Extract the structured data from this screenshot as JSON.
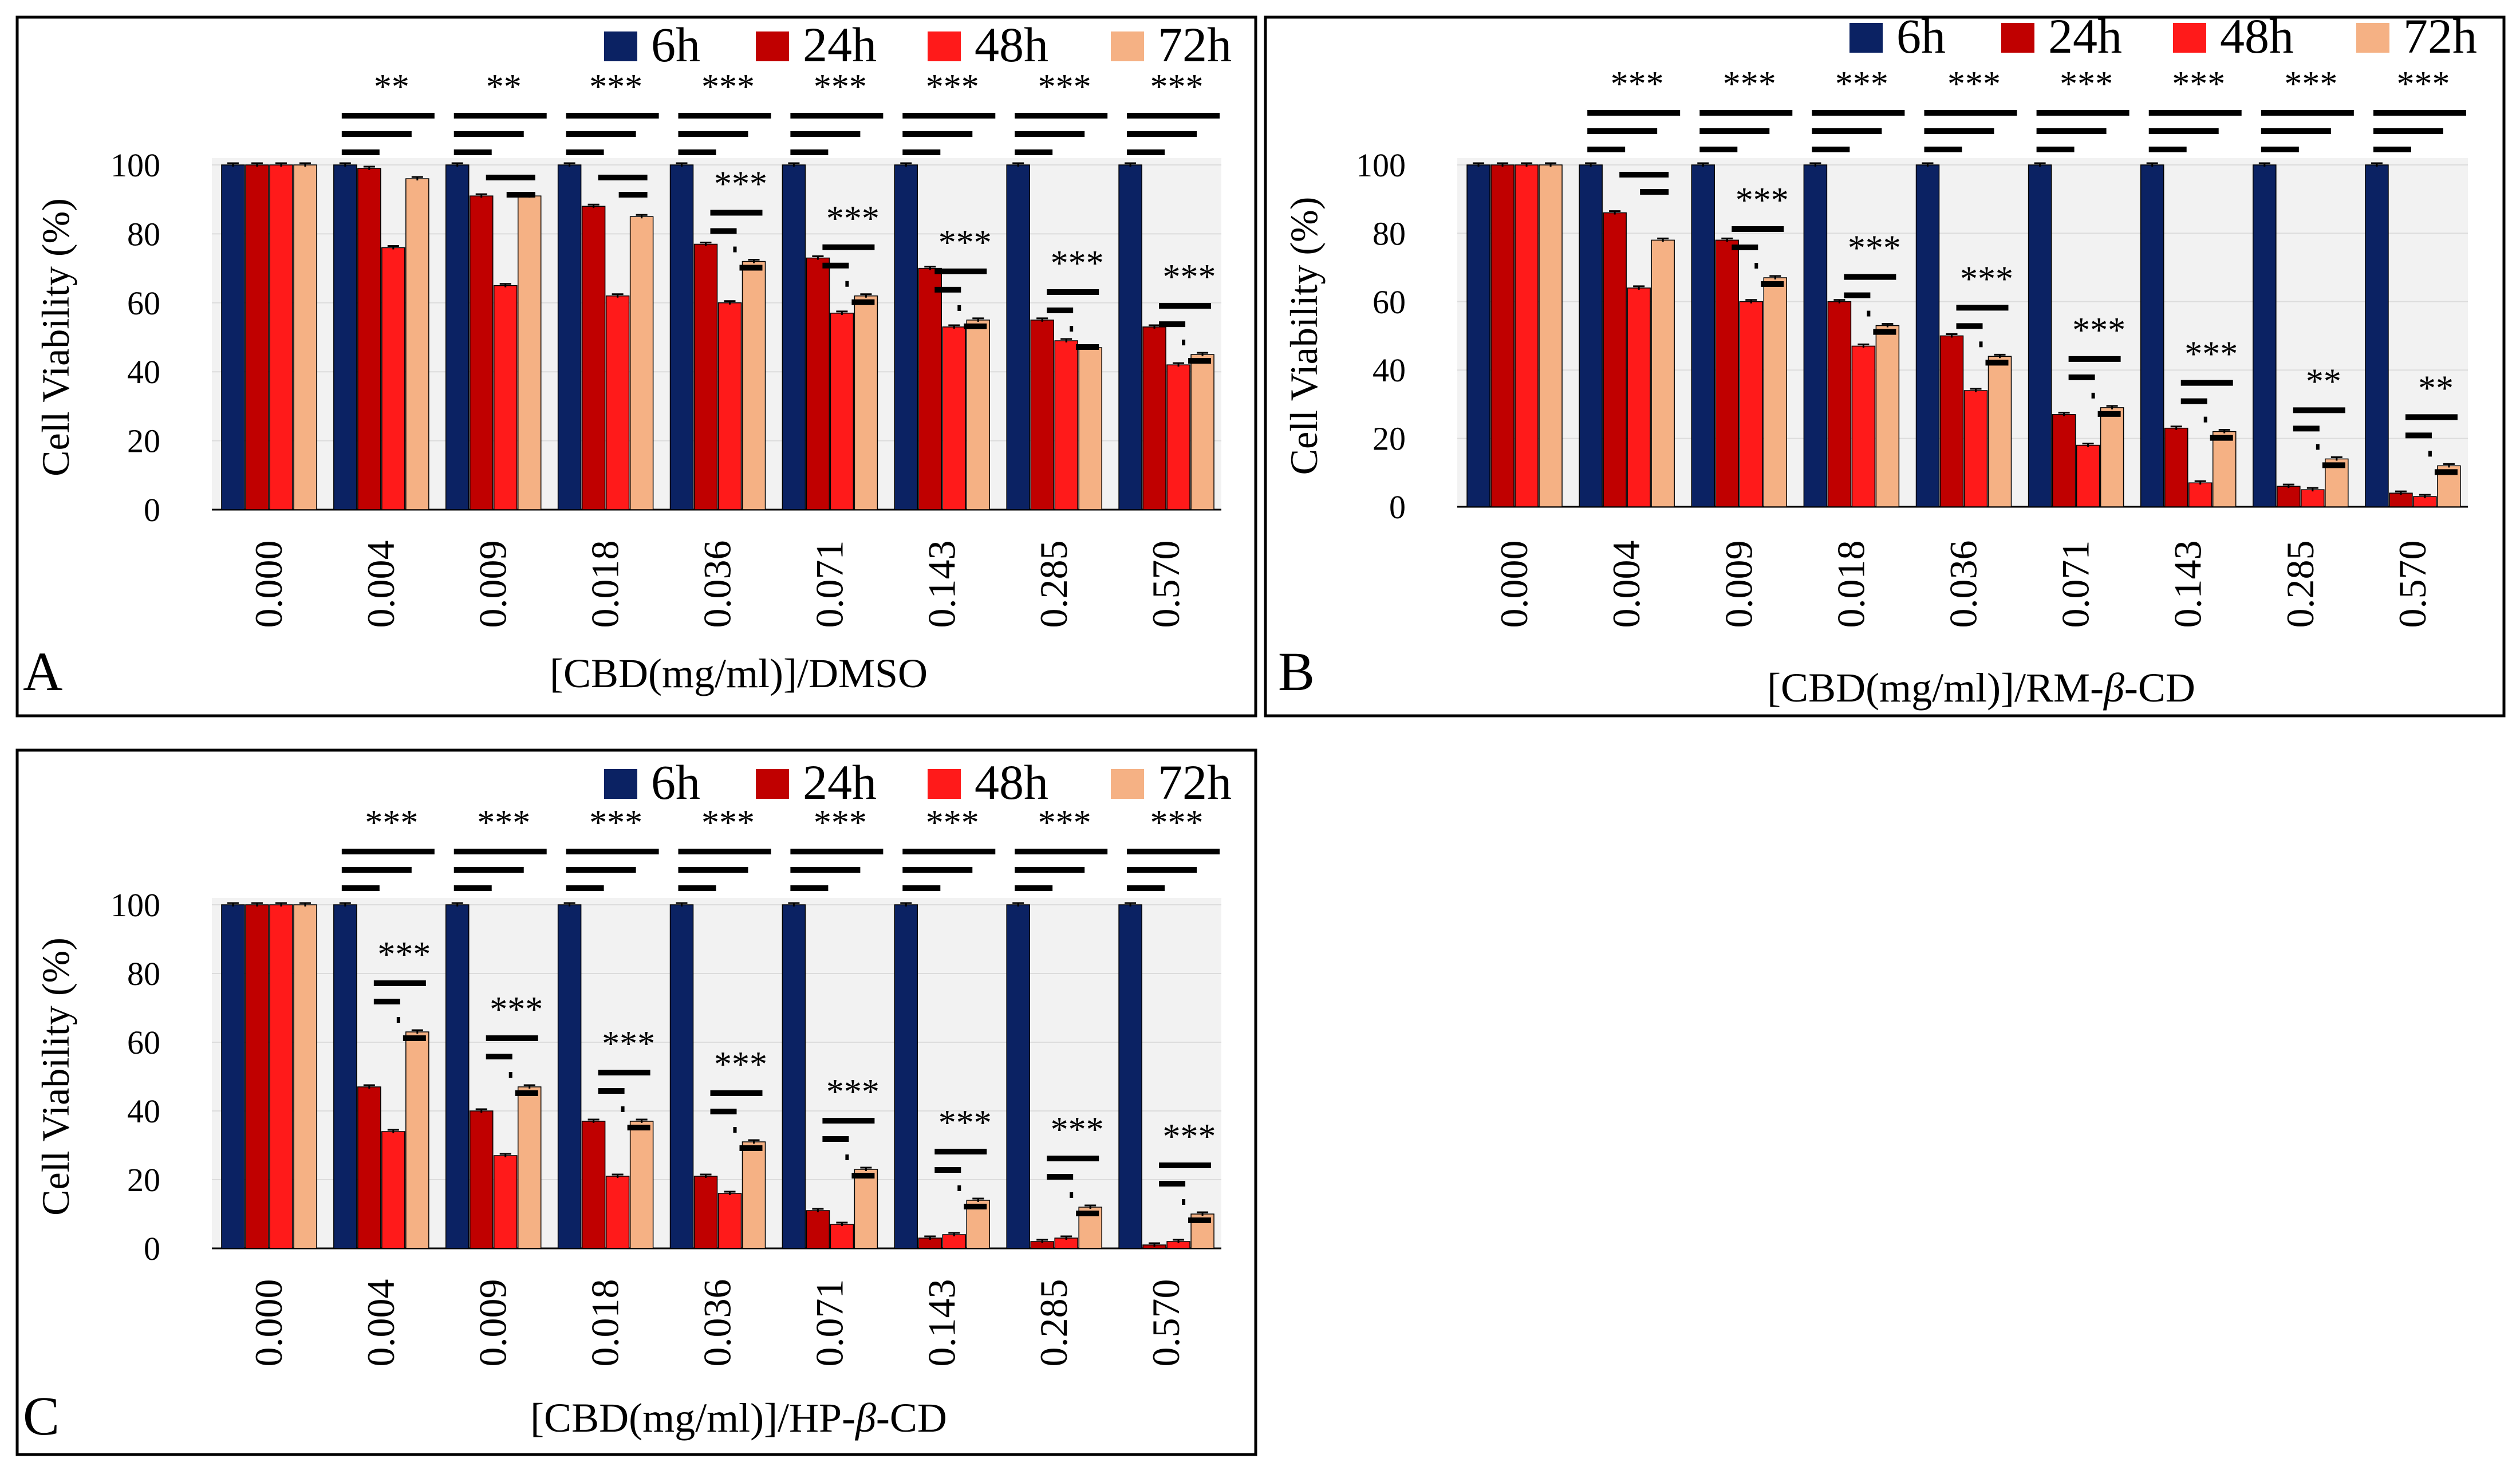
{
  "figure": {
    "legend_labels": [
      "6h",
      "24h",
      "48h",
      "72h"
    ],
    "series_colors": [
      "#0b2263",
      "#c00000",
      "#ff1a1a",
      "#f5b184"
    ]
  },
  "chart_data": [
    {
      "type": "bar",
      "panel_label": "A",
      "title": "",
      "xlabel": "[CBD(mg/ml)]/DMSO",
      "ylabel": "Cell Viability (%)",
      "ylim": [
        0,
        100
      ],
      "yticks": [
        "0",
        "20",
        "40",
        "60",
        "80",
        "100"
      ],
      "categories": [
        "0.000",
        "0.004",
        "0.009",
        "0.018",
        "0.036",
        "0.071",
        "0.143",
        "0.285",
        "0.570"
      ],
      "series": [
        {
          "name": "6h",
          "values": [
            100,
            100,
            100,
            100,
            100,
            100,
            100,
            100,
            100
          ]
        },
        {
          "name": "24h",
          "values": [
            100,
            99,
            91,
            88,
            77,
            73,
            70,
            55,
            53
          ]
        },
        {
          "name": "48h",
          "values": [
            100,
            76,
            65,
            62,
            60,
            57,
            53,
            49,
            42
          ]
        },
        {
          "name": "72h",
          "values": [
            100,
            96,
            91,
            85,
            72,
            62,
            55,
            47,
            45
          ]
        }
      ],
      "significance": [
        "",
        "**",
        "**",
        "***",
        "***",
        "***",
        "***",
        "***",
        "***"
      ],
      "inner_significance": [
        "",
        "",
        "",
        "",
        "***",
        "***",
        "***",
        "***",
        "***"
      ],
      "legend_position": "top-right"
    },
    {
      "type": "bar",
      "panel_label": "B",
      "title": "",
      "xlabel": "[CBD(mg/ml)]/RM-β-CD",
      "xlabel_parts": [
        "[CBD(mg/ml)]/RM-",
        "β",
        "-CD"
      ],
      "ylabel": "Cell Viability (%)",
      "ylim": [
        0,
        100
      ],
      "yticks": [
        "0",
        "20",
        "40",
        "60",
        "80",
        "100"
      ],
      "categories": [
        "0.000",
        "0.004",
        "0.009",
        "0.018",
        "0.036",
        "0.071",
        "0.143",
        "0.285",
        "0.570"
      ],
      "series": [
        {
          "name": "6h",
          "values": [
            100,
            100,
            100,
            100,
            100,
            100,
            100,
            100,
            100
          ]
        },
        {
          "name": "24h",
          "values": [
            100,
            86,
            78,
            60,
            50,
            27,
            23,
            6,
            4
          ]
        },
        {
          "name": "48h",
          "values": [
            100,
            64,
            60,
            47,
            34,
            18,
            7,
            5,
            3
          ]
        },
        {
          "name": "72h",
          "values": [
            100,
            78,
            67,
            53,
            44,
            29,
            22,
            14,
            12
          ]
        }
      ],
      "significance": [
        "",
        "***",
        "***",
        "***",
        "***",
        "***",
        "***",
        "***",
        "***"
      ],
      "inner_significance": [
        "",
        "",
        "***",
        "***",
        "***",
        "***",
        "***",
        "**",
        "**"
      ],
      "legend_position": "top-right"
    },
    {
      "type": "bar",
      "panel_label": "C",
      "title": "",
      "xlabel": "[CBD(mg/ml)]/HP-β-CD",
      "xlabel_parts": [
        "[CBD(mg/ml)]/HP-",
        "β",
        "-CD"
      ],
      "ylabel": "Cell Viability (%)",
      "ylim": [
        0,
        100
      ],
      "yticks": [
        "0",
        "20",
        "40",
        "60",
        "80",
        "100"
      ],
      "categories": [
        "0.000",
        "0.004",
        "0.009",
        "0.018",
        "0.036",
        "0.071",
        "0.143",
        "0.285",
        "0.570"
      ],
      "series": [
        {
          "name": "6h",
          "values": [
            100,
            100,
            100,
            100,
            100,
            100,
            100,
            100,
            100
          ]
        },
        {
          "name": "24h",
          "values": [
            100,
            47,
            40,
            37,
            21,
            11,
            3,
            2,
            1
          ]
        },
        {
          "name": "48h",
          "values": [
            100,
            34,
            27,
            21,
            16,
            7,
            4,
            3,
            2
          ]
        },
        {
          "name": "72h",
          "values": [
            100,
            63,
            47,
            37,
            31,
            23,
            14,
            12,
            10
          ]
        }
      ],
      "significance": [
        "",
        "***",
        "***",
        "***",
        "***",
        "***",
        "***",
        "***",
        "***"
      ],
      "inner_significance": [
        "",
        "***",
        "***",
        "***",
        "***",
        "***",
        "***",
        "***",
        "***"
      ],
      "legend_position": "top-right"
    }
  ]
}
